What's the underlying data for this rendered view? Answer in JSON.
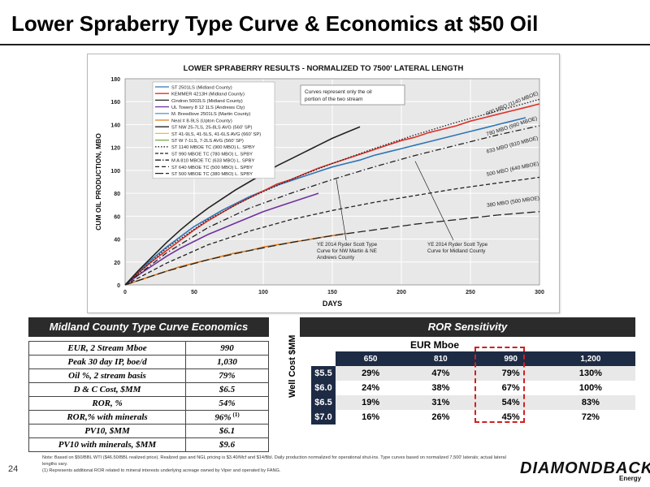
{
  "page": {
    "title": "Lower Spraberry Type Curve & Economics at $50 Oil",
    "page_number": "24",
    "notes": [
      "Note: Based on $50/BBL WTI ($46.50/BBL realized price). Realized gas and NGL pricing is $3.40/Mcf and $14/Bbl. Daily production normalized for operational shut-ins. Type curves based on normalized 7,500' laterals; actual lateral lengths vary.",
      "(1) Represents additional ROR related to mineral interests underlying acreage owned by Viper and operated by FANG."
    ],
    "logo": "DIAMONDBACK",
    "logo_sub": "Energy"
  },
  "chart_data": {
    "type": "line",
    "title": "LOWER SPRABERRY RESULTS - NORMALIZED TO 7500' LATERAL LENGTH",
    "xlabel": "DAYS",
    "ylabel": "CUM OIL PRODUCTION, MBO",
    "xlim": [
      0,
      300
    ],
    "ylim": [
      0,
      180
    ],
    "xticks": [
      0,
      50,
      100,
      150,
      200,
      250,
      300
    ],
    "yticks": [
      0,
      20,
      40,
      60,
      80,
      100,
      120,
      140,
      160,
      180
    ],
    "grid": true,
    "legend_position": "top-left",
    "series": [
      {
        "name": "ST 2501LS (Midland County)",
        "color": "#2e75b6",
        "style": "solid",
        "x": [
          0,
          10,
          20,
          30,
          40,
          50,
          60,
          70,
          80,
          90,
          100,
          110,
          120,
          130,
          140,
          150,
          160,
          170,
          180,
          190,
          200,
          210,
          220,
          230,
          240,
          250,
          260,
          270,
          280,
          290
        ],
        "y": [
          0,
          12,
          23,
          33,
          42,
          51,
          58,
          65,
          71,
          77,
          82,
          87,
          91,
          95,
          99,
          103,
          106,
          109,
          113,
          116,
          119,
          122,
          125,
          128,
          131,
          134,
          137,
          140,
          143,
          146
        ]
      },
      {
        "name": "KEMMER 4213H (Midland County)",
        "color": "#e0302a",
        "style": "solid",
        "x": [
          0,
          10,
          20,
          30,
          40,
          50,
          60,
          70,
          80,
          90,
          100,
          110,
          120,
          130,
          140,
          150,
          160,
          170,
          180,
          190,
          200,
          210,
          220,
          230,
          240,
          250,
          260,
          270,
          280,
          290,
          300
        ],
        "y": [
          0,
          11,
          21,
          30,
          39,
          48,
          56,
          63,
          70,
          76,
          82,
          88,
          92,
          97,
          102,
          106,
          110,
          114,
          118,
          122,
          126,
          129,
          133,
          136,
          139,
          143,
          146,
          149,
          152,
          155,
          158
        ]
      },
      {
        "name": "Cindron 5002LS (Midland County)",
        "color": "#222222",
        "style": "solid",
        "x": [
          0,
          10,
          20,
          30,
          40,
          50,
          60,
          70,
          80,
          90,
          100,
          110,
          120,
          130,
          140,
          150,
          160,
          170
        ],
        "y": [
          0,
          13,
          25,
          37,
          48,
          58,
          67,
          75,
          83,
          90,
          97,
          104,
          110,
          116,
          122,
          128,
          133,
          138
        ]
      },
      {
        "name": "UL Towery 8 12 1LS (Andrews Cty)",
        "color": "#7030a0",
        "style": "solid",
        "x": [
          0,
          10,
          20,
          30,
          40,
          50,
          60,
          70,
          80,
          90,
          100,
          110,
          120,
          130,
          140
        ],
        "y": [
          0,
          9,
          17,
          25,
          32,
          38,
          44,
          49,
          54,
          59,
          64,
          68,
          72,
          76,
          80
        ]
      },
      {
        "name": "Neal # 8-9LS (Upton County)",
        "color": "#e07b1b",
        "style": "solid",
        "x": [
          0,
          10,
          20,
          30,
          40,
          50,
          60,
          70,
          80,
          90,
          100,
          110,
          120,
          130,
          140,
          150,
          160
        ],
        "y": [
          0,
          4,
          8,
          12,
          16,
          19,
          22,
          25,
          28,
          30,
          33,
          35,
          37,
          39,
          41,
          43,
          45
        ]
      },
      {
        "name": "ST 1140 MBOE TC (900 MBO) L. SPBY",
        "color": "#222222",
        "style": "dotted",
        "x": [
          0,
          30,
          60,
          90,
          120,
          150,
          180,
          210,
          240,
          270,
          300
        ],
        "y": [
          0,
          32,
          57,
          76,
          92,
          106,
          119,
          131,
          142,
          152,
          162
        ]
      },
      {
        "name": "ST 990 MBOE TC (780 MBO) L. SPBY",
        "color": "#222222",
        "style": "dashdot",
        "x": [
          0,
          30,
          60,
          90,
          120,
          150,
          180,
          210,
          240,
          270,
          300
        ],
        "y": [
          0,
          28,
          50,
          67,
          80,
          92,
          103,
          113,
          122,
          131,
          139
        ]
      },
      {
        "name": "ST 640 MBOE TC (500 MBO) L. SPBY",
        "color": "#222222",
        "style": "dashed",
        "x": [
          0,
          30,
          60,
          90,
          120,
          150,
          180,
          210,
          240,
          270,
          300
        ],
        "y": [
          0,
          19,
          35,
          47,
          57,
          65,
          72,
          78,
          84,
          89,
          94
        ]
      },
      {
        "name": "ST 500 MBOE TC (380 MBO) L. SPBY",
        "color": "#222222",
        "style": "longdash",
        "x": [
          0,
          30,
          60,
          90,
          120,
          150,
          180,
          210,
          240,
          270,
          300
        ],
        "y": [
          0,
          12,
          22,
          30,
          37,
          43,
          48,
          53,
          57,
          61,
          64
        ]
      }
    ],
    "legend": [
      "ST 2501LS (Midland County)",
      "KEMMER 4213H (Midland County)",
      "Cindron 5002LS (Midland County)",
      "UL Towery 8 12 1LS (Andrews Cty)",
      "M. Breedlove 2501LS (Martin County)",
      "Neal # 8-9LS (Upton County)",
      "ST NW 25-7LS, 25-8LS AVG (560' SP)",
      "ST 41-9LS, 41-5LS, 41-6LS AVG (660' SP)",
      "ST W 7-1LS, 7-2LS AVG (560' SP)",
      "ST 1140 MBOE TC (900 MBO) L. SPBY",
      "ST 990 MBOE TC (780 MBO) L. SPBY",
      "M A 810 MBOE TC (633 MBO) L. SPBY",
      "ST 640 MBOE TC (500 MBO) L. SPBY",
      "ST 500 MBOE TC (380 MBO) L. SPBY"
    ],
    "annotations": [
      "Curves represent only the oil portion of the two stream",
      "900 MBO (1140 MBOE)",
      "780 MBO (990 MBOE)",
      "633 MBO (810 MBOE)",
      "500 MBO (640 MBOE)",
      "380 MBO (500 MBOE)",
      "YE 2014 Ryder Scott Type Curve for NW Martin & NE Andrews County",
      "YE 2014 Ryder Scott Type Curve for Midland County"
    ]
  },
  "midland_table": {
    "header": "Midland County Type Curve Economics",
    "rows": [
      {
        "label": "EUR, 2 Stream Mboe",
        "value": "990",
        "sup": ""
      },
      {
        "label": "Peak 30 day IP, boe/d",
        "value": "1,030",
        "sup": ""
      },
      {
        "label": "Oil %, 2 stream basis",
        "value": "79%",
        "sup": ""
      },
      {
        "label": "D & C Cost, $MM",
        "value": "$6.5",
        "sup": ""
      },
      {
        "label": "ROR, %",
        "value": "54%",
        "sup": ""
      },
      {
        "label": "ROR,% with minerals",
        "value": "96%",
        "sup": "(1)"
      },
      {
        "label": "PV10, $MM",
        "value": "$6.1",
        "sup": ""
      },
      {
        "label": "PV10 with minerals, $MM",
        "value": "$9.6",
        "sup": ""
      }
    ]
  },
  "ror_table": {
    "header": "ROR Sensitivity",
    "col_group_label": "EUR Mboe",
    "row_group_label": "Well Cost $MM",
    "columns": [
      "650",
      "810",
      "990",
      "1,200"
    ],
    "rows": [
      {
        "cost": "$5.5",
        "values": [
          "29%",
          "47%",
          "79%",
          "130%"
        ]
      },
      {
        "cost": "$6.0",
        "values": [
          "24%",
          "38%",
          "67%",
          "100%"
        ]
      },
      {
        "cost": "$6.5",
        "values": [
          "19%",
          "31%",
          "54%",
          "83%"
        ]
      },
      {
        "cost": "$7.0",
        "values": [
          "16%",
          "26%",
          "45%",
          "72%"
        ]
      }
    ],
    "highlight_color": "#d02020"
  }
}
